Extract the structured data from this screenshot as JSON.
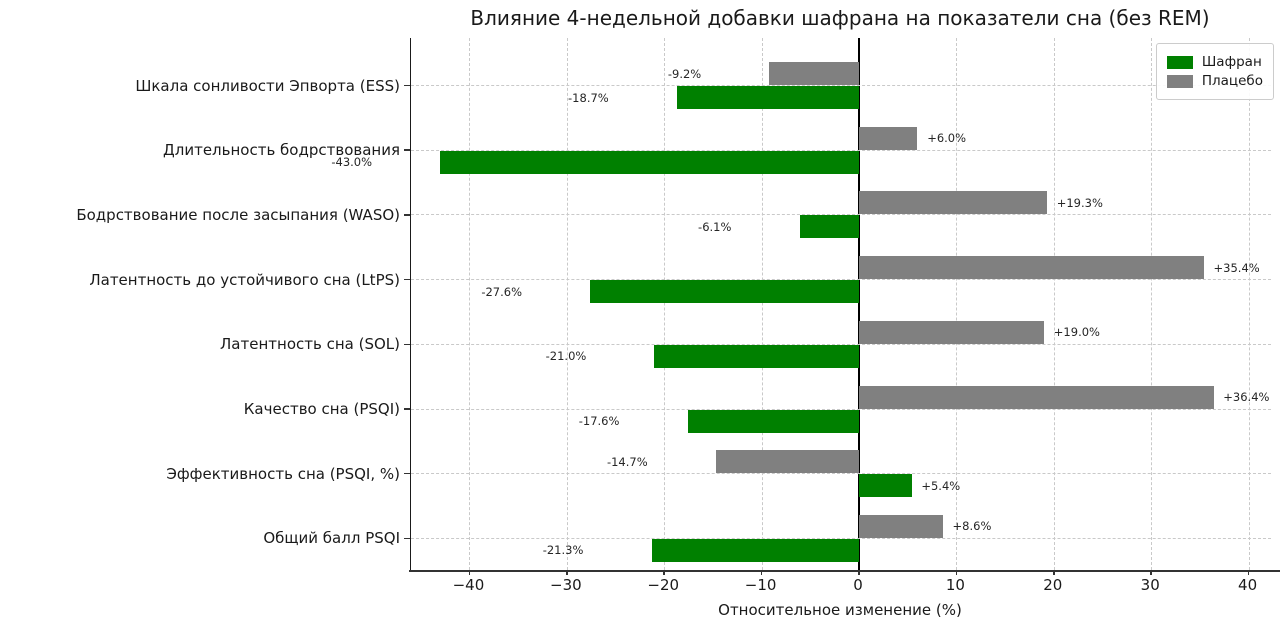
{
  "chart_data": {
    "type": "bar",
    "orientation": "horizontal-grouped",
    "title": "Влияние 4-недельной добавки шафрана на показатели сна (без REM)",
    "xlabel": "Относительное изменение (%)",
    "ylabel": "",
    "categories": [
      "Шкала сонливости Эпворта (ESS)",
      "Длительность бодрствования",
      "Бодрствование после засыпания (WASO)",
      "Латентность до устойчивого сна (LtPS)",
      "Латентность сна (SOL)",
      "Качество сна (PSQI)",
      "Эффективность сна (PSQI, %)",
      "Общий балл PSQI"
    ],
    "series": [
      {
        "name": "Шафран",
        "color": "#008000",
        "values": [
          -18.7,
          -43.0,
          -6.1,
          -27.6,
          -21.0,
          -17.6,
          5.4,
          -21.3
        ],
        "labels": [
          "-18.7%",
          "-43.0%",
          "-6.1%",
          "-27.6%",
          "-21.0%",
          "-17.6%",
          "+5.4%",
          "-21.3%"
        ]
      },
      {
        "name": "Плацебо",
        "color": "#808080",
        "values": [
          -9.2,
          6.0,
          19.3,
          35.4,
          19.0,
          36.4,
          -14.7,
          8.6
        ],
        "labels": [
          "-9.2%",
          "+6.0%",
          "+19.3%",
          "+35.4%",
          "+19.0%",
          "+36.4%",
          "-14.7%",
          "+8.6%"
        ]
      }
    ],
    "group_row_order": [
      "Плацебо",
      "Шафран"
    ],
    "x_ticks": [
      -40,
      -30,
      -20,
      -10,
      0,
      10,
      20,
      30,
      40
    ],
    "x_tick_labels": [
      "−40",
      "−30",
      "−20",
      "−10",
      "0",
      "10",
      "20",
      "30",
      "40"
    ],
    "xlim": [
      -46.0,
      42.3
    ],
    "grid": true,
    "legend_position": "upper right",
    "zero_line": true
  }
}
